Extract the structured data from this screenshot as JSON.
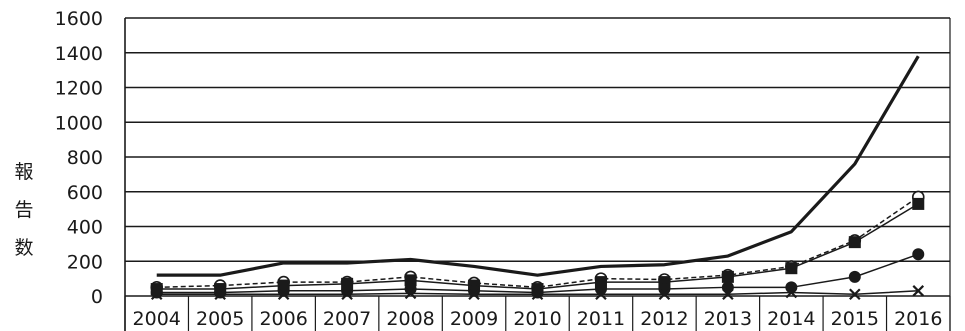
{
  "chart_data": {
    "type": "line",
    "title": "",
    "xlabel": "",
    "ylabel": "報告数",
    "ylim": [
      0,
      1600
    ],
    "yticks": [
      0,
      200,
      400,
      600,
      800,
      1000,
      1200,
      1400,
      1600
    ],
    "grid": "horizontal",
    "categories": [
      "2004",
      "2005",
      "2006",
      "2007",
      "2008",
      "2009",
      "2010",
      "2011",
      "2012",
      "2013",
      "2014",
      "2015",
      "2016"
    ],
    "series": [
      {
        "values": [
          120,
          120,
          190,
          190,
          210,
          170,
          120,
          170,
          180,
          230,
          370,
          760,
          1380
        ],
        "style": "solid",
        "width": 3.2,
        "marker": "none"
      },
      {
        "values": [
          50,
          60,
          80,
          80,
          110,
          75,
          50,
          100,
          95,
          120,
          170,
          320,
          570
        ],
        "style": "dashed",
        "width": 1.5,
        "marker": "circle-open"
      },
      {
        "values": [
          40,
          40,
          60,
          70,
          90,
          60,
          40,
          80,
          80,
          110,
          160,
          310,
          530
        ],
        "style": "solid",
        "width": 1.5,
        "marker": "square"
      },
      {
        "values": [
          20,
          20,
          30,
          30,
          40,
          30,
          20,
          40,
          40,
          50,
          50,
          110,
          240
        ],
        "style": "solid",
        "width": 1.5,
        "marker": "circle"
      },
      {
        "values": [
          10,
          10,
          10,
          10,
          15,
          10,
          10,
          10,
          10,
          10,
          20,
          10,
          30
        ],
        "style": "solid",
        "width": 1.5,
        "marker": "x"
      }
    ],
    "colors": {
      "line": "#1a1a1a",
      "grid": "#1a1a1a"
    }
  }
}
